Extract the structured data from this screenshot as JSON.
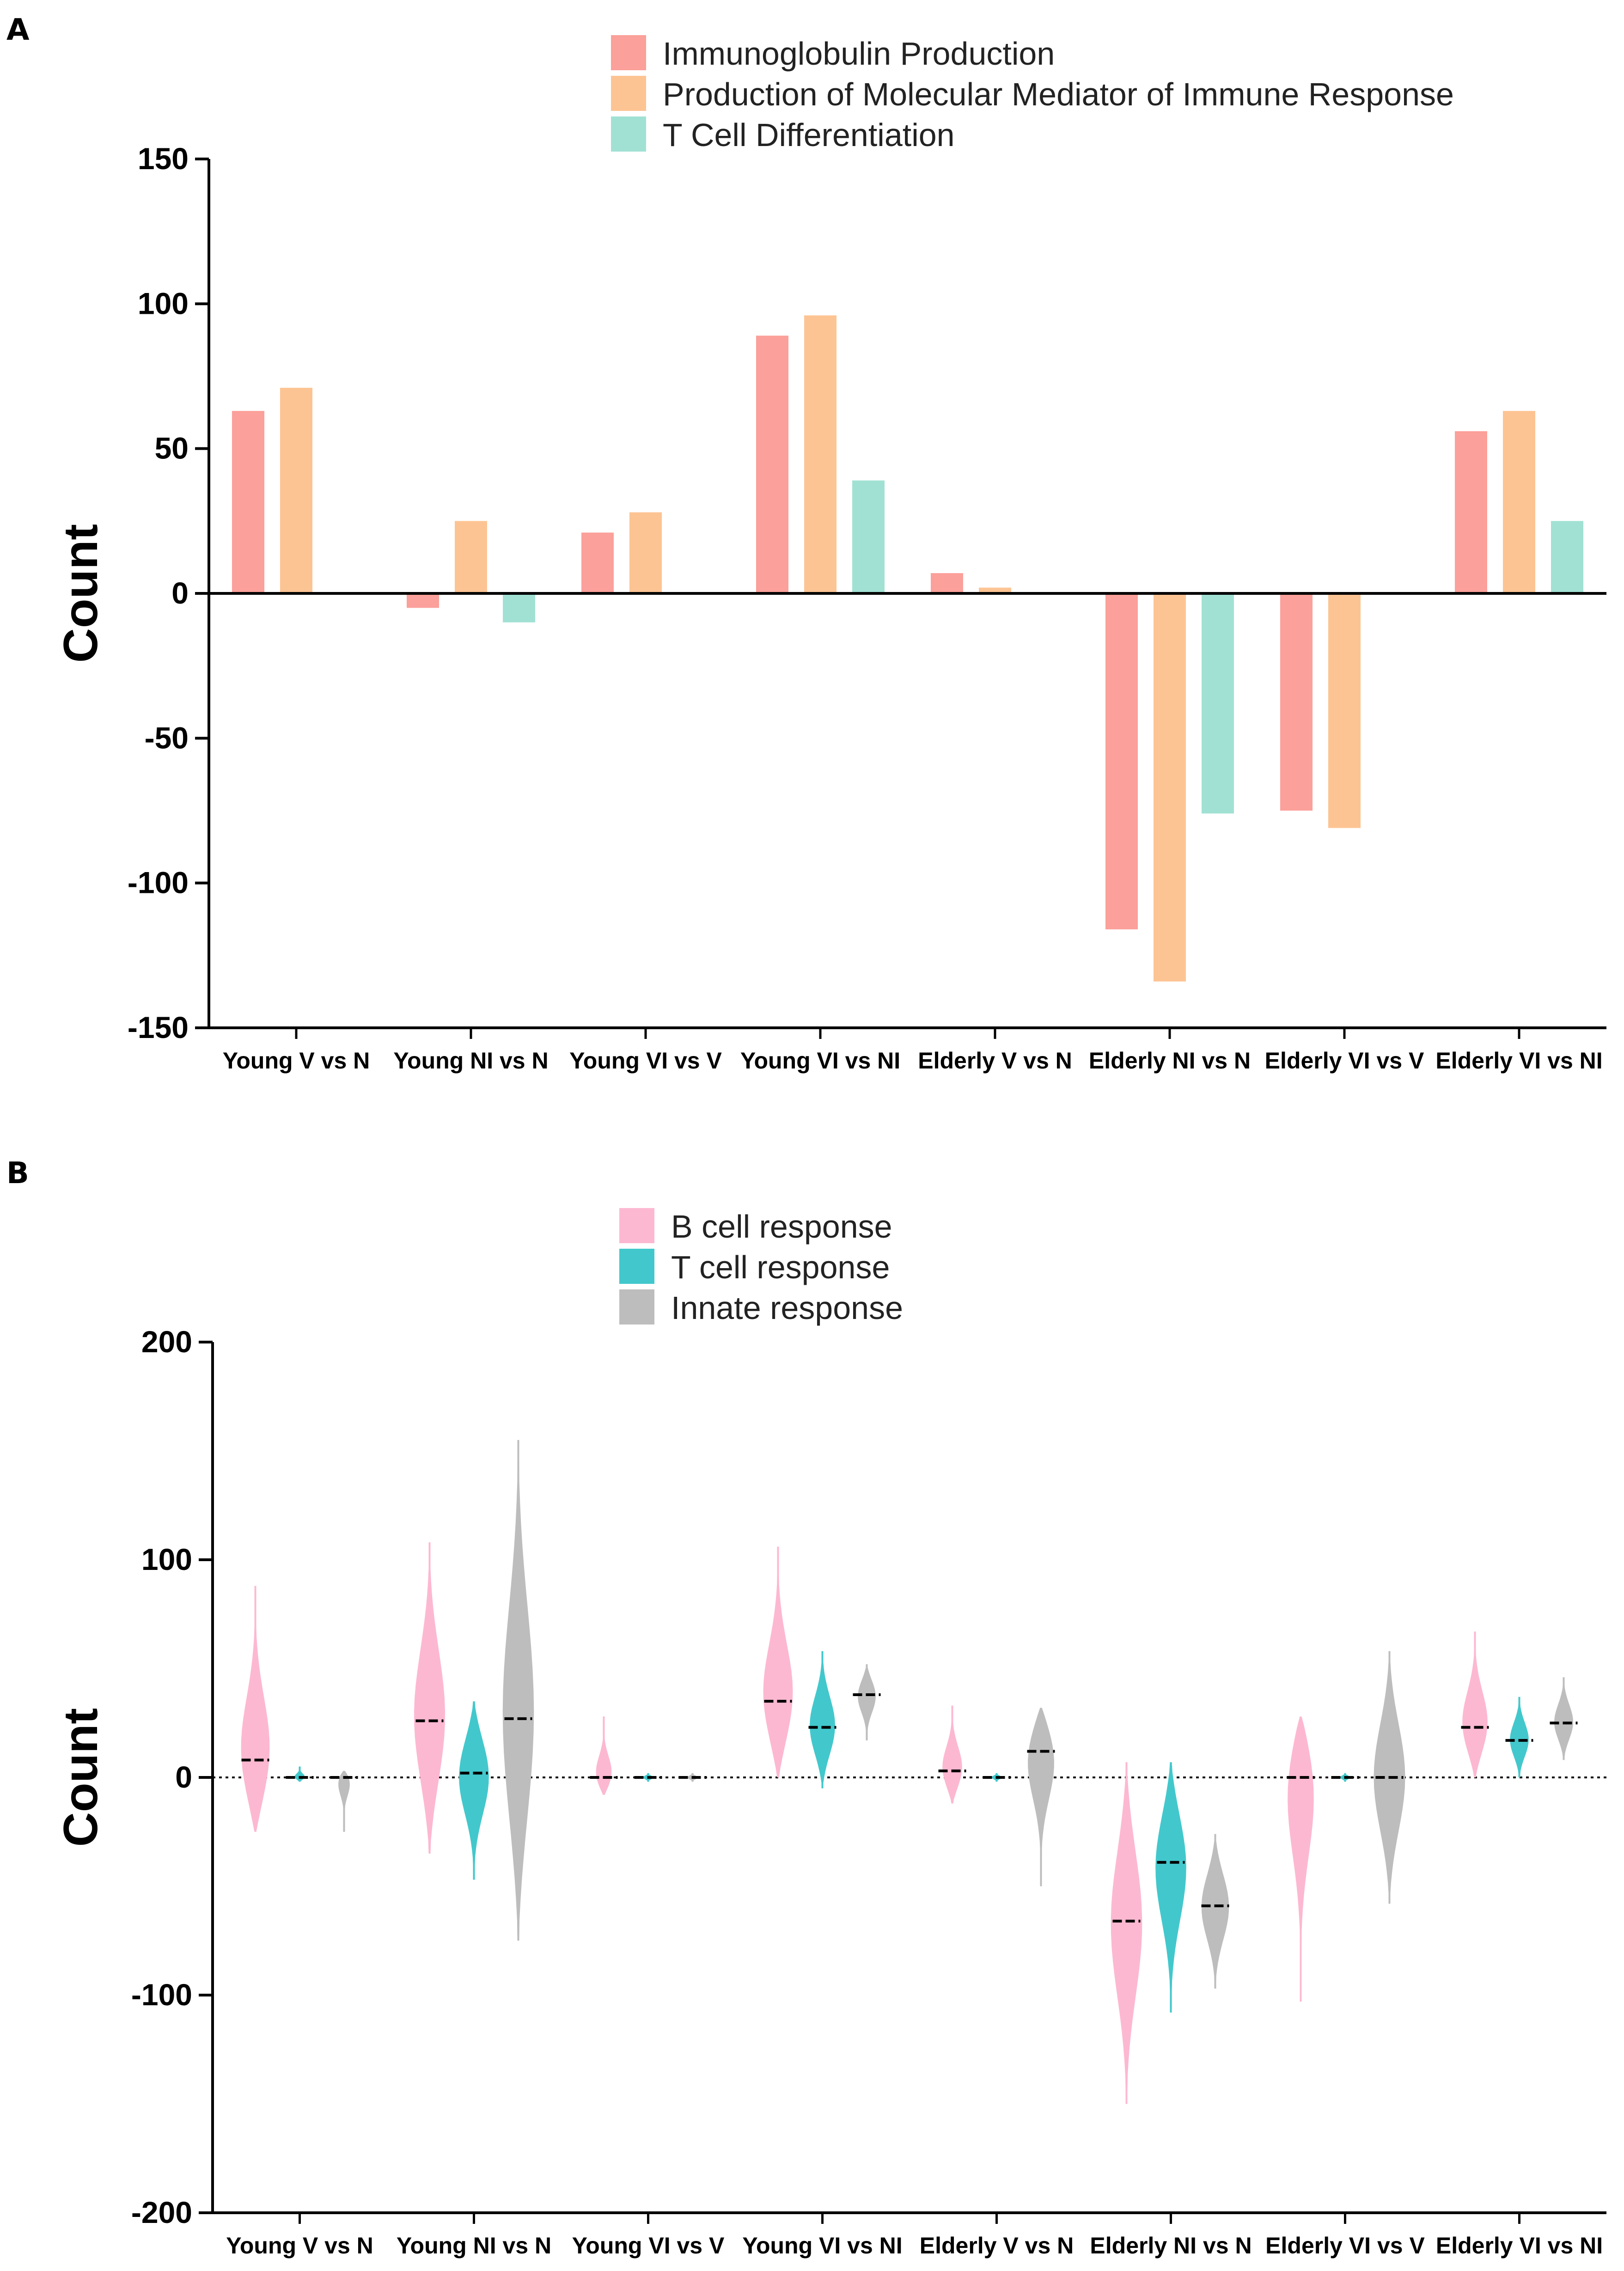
{
  "panel_a_letter": "A",
  "panel_b_letter": "B",
  "chart_data": [
    {
      "type": "bar",
      "panel": "A",
      "ylabel": "Count",
      "ylim": [
        -150,
        150
      ],
      "yticks": [
        150,
        100,
        50,
        0,
        -50,
        -100,
        -150
      ],
      "categories": [
        "Young V vs N",
        "Young NI vs N",
        "Young VI vs V",
        "Young VI vs NI",
        "Elderly V vs N",
        "Elderly NI vs N",
        "Elderly VI vs V",
        "Elderly VI vs NI"
      ],
      "series": [
        {
          "name": "Immunoglobulin Production",
          "color": "#FBA09A",
          "values": [
            63,
            -5,
            21,
            89,
            7,
            -116,
            -75,
            56
          ]
        },
        {
          "name": "Production of Molecular Mediator of Immune Response",
          "color": "#FDC493",
          "values": [
            71,
            25,
            28,
            96,
            2,
            -134,
            -81,
            63
          ]
        },
        {
          "name": "T Cell Differentiation",
          "color": "#A1E1D4",
          "values": [
            0,
            -10,
            0,
            39,
            0,
            -76,
            0,
            25
          ]
        }
      ]
    },
    {
      "type": "violin",
      "panel": "B",
      "ylabel": "Count",
      "ylim": [
        -200,
        200
      ],
      "yticks": [
        200,
        100,
        0,
        -100,
        -200
      ],
      "categories": [
        "Young V vs N",
        "Young NI vs N",
        "Young VI vs V",
        "Young VI vs NI",
        "Elderly V vs N",
        "Elderly NI vs N",
        "Elderly VI vs V",
        "Elderly VI vs NI"
      ],
      "series": [
        {
          "name": "B cell response",
          "color": "#FDB8D1",
          "median": [
            8,
            26,
            0,
            35,
            3,
            -66,
            0,
            23
          ],
          "min": [
            -25,
            -35,
            -8,
            0,
            -12,
            -150,
            -103,
            0
          ],
          "max": [
            88,
            108,
            28,
            106,
            33,
            7,
            28,
            67
          ]
        },
        {
          "name": "T cell response",
          "color": "#42C8CC",
          "median": [
            0,
            2,
            0,
            23,
            0,
            -39,
            0,
            17
          ],
          "min": [
            -2,
            -47,
            -2,
            -5,
            -2,
            -108,
            -2,
            0
          ],
          "max": [
            5,
            35,
            2,
            58,
            2,
            7,
            2,
            37
          ]
        },
        {
          "name": "Innate response",
          "color": "#BDBDBD",
          "median": [
            0,
            27,
            0,
            38,
            12,
            -59,
            0,
            25
          ],
          "min": [
            -25,
            -75,
            -2,
            17,
            -50,
            -97,
            -58,
            8
          ],
          "max": [
            3,
            155,
            2,
            52,
            32,
            -26,
            58,
            46
          ]
        }
      ]
    }
  ]
}
